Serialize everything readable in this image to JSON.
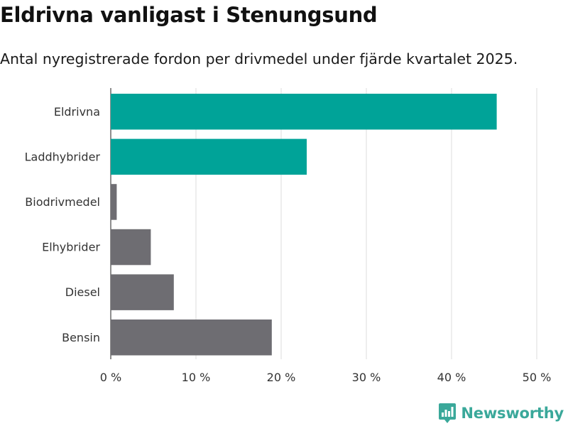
{
  "chart_data": {
    "type": "bar",
    "orientation": "horizontal",
    "title": "Eldrivna vanligast i Stenungsund",
    "subtitle": "Antal nyregistrerade fordon per drivmedel under fjärde kvartalet 2025.",
    "categories": [
      "Eldrivna",
      "Laddhybrider",
      "Biodrivmedel",
      "Elhybrider",
      "Diesel",
      "Bensin"
    ],
    "values": [
      45.3,
      23.0,
      0.7,
      4.7,
      7.4,
      18.9
    ],
    "colors": [
      "#00a398",
      "#00a398",
      "#6e6d72",
      "#6e6d72",
      "#6e6d72",
      "#6e6d72"
    ],
    "xlim": [
      0,
      50
    ],
    "xticks": [
      0,
      10,
      20,
      30,
      40,
      50
    ],
    "tick_suffix": " %",
    "xlabel": "",
    "ylabel": "",
    "grid": true
  },
  "branding": {
    "logo_text": "Newsworthy",
    "logo_color": "#3aa89a",
    "logo_icon": "bar-chart-badge-icon"
  }
}
